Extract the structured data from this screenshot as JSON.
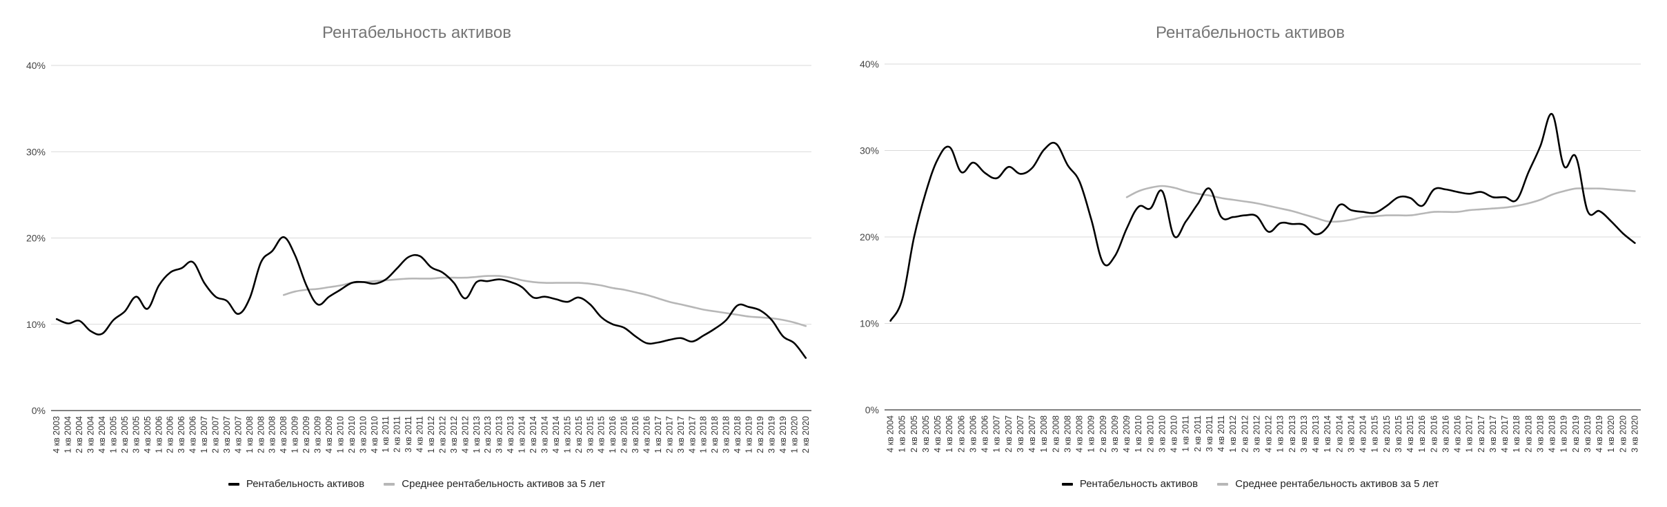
{
  "chart_data": [
    {
      "type": "line",
      "title": "Рентабельность активов",
      "xlabel": "",
      "ylabel": "",
      "ylim": [
        0,
        40
      ],
      "yticks": [
        "0%",
        "10%",
        "20%",
        "30%",
        "40%"
      ],
      "grid": true,
      "legend_position": "bottom",
      "categories": [
        "4 кв 2003",
        "1 кв 2004",
        "2 кв 2004",
        "3 кв 2004",
        "4 кв 2004",
        "1 кв 2005",
        "2 кв 2005",
        "3 кв 2005",
        "4 кв 2005",
        "1 кв 2006",
        "2 кв 2006",
        "3 кв 2006",
        "4 кв 2006",
        "1 кв 2007",
        "2 кв 2007",
        "3 кв 2007",
        "4 кв 2007",
        "1 кв 2008",
        "2 кв 2008",
        "3 кв 2008",
        "4 кв 2008",
        "1 кв 2009",
        "2 кв 2009",
        "3 кв 2009",
        "4 кв 2009",
        "1 кв 2010",
        "2 кв 2010",
        "3 кв 2010",
        "4 кв 2010",
        "1 кв 2011",
        "2 кв 2011",
        "3 кв 2011",
        "4 кв 2011",
        "1 кв 2012",
        "2 кв 2012",
        "3 кв 2012",
        "4 кв 2012",
        "1 кв 2013",
        "2 кв 2013",
        "3 кв 2013",
        "4 кв 2013",
        "1 кв 2014",
        "2 кв 2014",
        "3 кв 2014",
        "4 кв 2014",
        "1 кв 2015",
        "2 кв 2015",
        "3 кв 2015",
        "4 кв 2015",
        "1 кв 2016",
        "2 кв 2016",
        "3 кв 2016",
        "4 кв 2016",
        "1 кв 2017",
        "2 кв 2017",
        "3 кв 2017",
        "4 кв 2017",
        "1 кв 2018",
        "2 кв 2018",
        "3 кв 2018",
        "4 кв 2018",
        "1 кв 2019",
        "2 кв 2019",
        "3 кв 2019",
        "4 кв 2019",
        "1 кв 2020",
        "2 кв 2020"
      ],
      "series": [
        {
          "name": "Рентабельность активов",
          "color": "#000000",
          "values": [
            10.6,
            10.1,
            10.4,
            9.2,
            8.9,
            10.5,
            11.5,
            13.2,
            11.8,
            14.5,
            16.0,
            16.5,
            17.2,
            14.8,
            13.2,
            12.7,
            11.2,
            13.0,
            17.2,
            18.5,
            20.1,
            18.0,
            14.5,
            12.3,
            13.2,
            14.0,
            14.8,
            14.9,
            14.7,
            15.2,
            16.5,
            17.8,
            17.9,
            16.6,
            16.0,
            14.8,
            13.0,
            14.9,
            15.0,
            15.2,
            14.9,
            14.3,
            13.1,
            13.2,
            12.9,
            12.6,
            13.1,
            12.3,
            10.8,
            10.0,
            9.6,
            8.6,
            7.8,
            7.9,
            8.2,
            8.4,
            8.0,
            8.7,
            9.5,
            10.5,
            12.2,
            12.0,
            11.6,
            10.5,
            8.6,
            7.8,
            6.1
          ]
        },
        {
          "name": "Среднее рентабельность активов за 5 лет",
          "color": "#b7b7b7",
          "values": [
            null,
            null,
            null,
            null,
            null,
            null,
            null,
            null,
            null,
            null,
            null,
            null,
            null,
            null,
            null,
            null,
            null,
            null,
            null,
            null,
            13.4,
            13.8,
            14.0,
            14.1,
            14.3,
            14.5,
            14.8,
            14.9,
            15.0,
            15.1,
            15.2,
            15.3,
            15.3,
            15.3,
            15.4,
            15.4,
            15.4,
            15.5,
            15.6,
            15.6,
            15.4,
            15.1,
            14.9,
            14.8,
            14.8,
            14.8,
            14.8,
            14.7,
            14.5,
            14.2,
            14.0,
            13.7,
            13.4,
            13.0,
            12.6,
            12.3,
            12.0,
            11.7,
            11.5,
            11.3,
            11.1,
            10.9,
            10.8,
            10.7,
            10.5,
            10.2,
            9.8
          ]
        }
      ]
    },
    {
      "type": "line",
      "title": "Рентабельность активов",
      "xlabel": "",
      "ylabel": "",
      "ylim": [
        0,
        40
      ],
      "yticks": [
        "0%",
        "10%",
        "20%",
        "30%",
        "40%"
      ],
      "grid": true,
      "legend_position": "bottom",
      "categories": [
        "4 кв 2004",
        "1 кв 2005",
        "2 кв 2005",
        "3 кв 2005",
        "4 кв 2005",
        "1 кв 2006",
        "2 кв 2006",
        "3 кв 2006",
        "4 кв 2006",
        "1 кв 2007",
        "2 кв 2007",
        "3 кв 2007",
        "4 кв 2007",
        "1 кв 2008",
        "2 кв 2008",
        "3 кв 2008",
        "4 кв 2008",
        "1 кв 2009",
        "2 кв 2009",
        "3 кв 2009",
        "4 кв 2009",
        "1 кв 2010",
        "2 кв 2010",
        "3 кв 2010",
        "4 кв 2010",
        "1 кв 2011",
        "2 кв 2011",
        "3 кв 2011",
        "4 кв 2011",
        "1 кв 2012",
        "2 кв 2012",
        "3 кв 2012",
        "4 кв 2012",
        "1 кв 2013",
        "2 кв 2013",
        "3 кв 2013",
        "4 кв 2013",
        "1 кв 2014",
        "2 кв 2014",
        "3 кв 2014",
        "4 кв 2014",
        "1 кв 2015",
        "2 кв 2015",
        "3 кв 2015",
        "4 кв 2015",
        "1 кв 2016",
        "2 кв 2016",
        "3 кв 2016",
        "4 кв 2016",
        "1 кв 2017",
        "2 кв 2017",
        "3 кв 2017",
        "4 кв 2017",
        "1 кв 2018",
        "2 кв 2018",
        "3 кв 2018",
        "4 кв 2018",
        "1 кв 2019",
        "2 кв 2019",
        "3 кв 2019",
        "4 кв 2019",
        "1 кв 2020",
        "2 кв 2020",
        "3 кв 2020"
      ],
      "series": [
        {
          "name": "Рентабельность активов",
          "color": "#000000",
          "values": [
            10.3,
            12.8,
            20.0,
            25.2,
            29.0,
            30.4,
            27.5,
            28.6,
            27.4,
            26.8,
            28.1,
            27.3,
            28.0,
            30.1,
            30.8,
            28.3,
            26.4,
            22.0,
            17.0,
            17.8,
            21.0,
            23.5,
            23.3,
            25.3,
            20.1,
            21.8,
            23.8,
            25.6,
            22.3,
            22.3,
            22.5,
            22.4,
            20.6,
            21.6,
            21.5,
            21.4,
            20.3,
            21.2,
            23.7,
            23.1,
            22.9,
            22.8,
            23.6,
            24.6,
            24.5,
            23.6,
            25.5,
            25.5,
            25.2,
            25.0,
            25.2,
            24.6,
            24.6,
            24.3,
            27.5,
            30.5,
            34.2,
            28.2,
            29.3,
            23.0,
            23.0,
            21.8,
            20.4,
            19.3
          ]
        },
        {
          "name": "Среднее рентабельность активов за 5 лет",
          "color": "#b7b7b7",
          "values": [
            null,
            null,
            null,
            null,
            null,
            null,
            null,
            null,
            null,
            null,
            null,
            null,
            null,
            null,
            null,
            null,
            null,
            null,
            null,
            null,
            24.6,
            25.3,
            25.7,
            25.9,
            25.7,
            25.3,
            25.0,
            24.8,
            24.5,
            24.3,
            24.1,
            23.9,
            23.6,
            23.3,
            23.0,
            22.6,
            22.2,
            21.8,
            21.8,
            22.0,
            22.3,
            22.4,
            22.5,
            22.5,
            22.5,
            22.7,
            22.9,
            22.9,
            22.9,
            23.1,
            23.2,
            23.3,
            23.4,
            23.6,
            23.9,
            24.3,
            24.9,
            25.3,
            25.6,
            25.6,
            25.6,
            25.5,
            25.4,
            25.3
          ]
        }
      ]
    }
  ]
}
